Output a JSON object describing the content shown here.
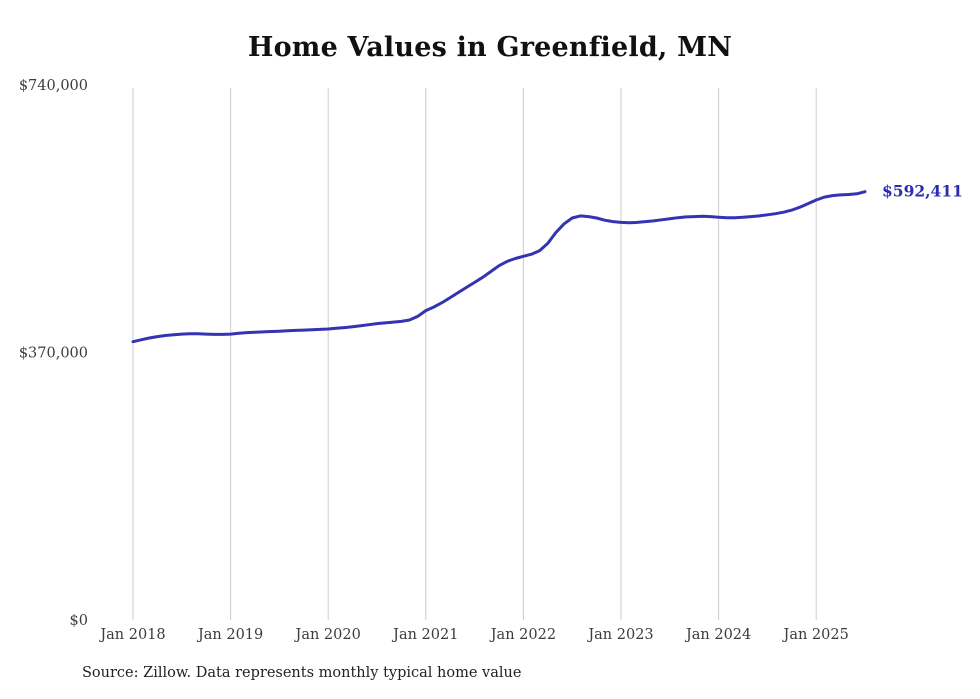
{
  "title": "Home Values in Greenfield, MN",
  "source": "Source: Zillow. Data represents monthly typical home value",
  "colors": {
    "line": "#3333b3",
    "label": "#2b2bb3",
    "grid": "#cccccc",
    "axis_text": "#3c3c3c",
    "title_text": "#111111"
  },
  "chart_data": {
    "type": "line",
    "title": "Home Values in Greenfield, MN",
    "xlabel": "",
    "ylabel": "",
    "ylim": [
      0,
      740000
    ],
    "grid": "vertical-only",
    "frequency": "monthly",
    "x_start": "Jan 2018",
    "x_end": "Jul 2025",
    "x_tick_labels": [
      "Jan 2018",
      "Jan 2019",
      "Jan 2020",
      "Jan 2021",
      "Jan 2022",
      "Jan 2023",
      "Jan 2024",
      "Jan 2025"
    ],
    "y_ticks": [
      {
        "label": "$740,000",
        "value": 740000
      },
      {
        "label": "$370,000",
        "value": 370000
      },
      {
        "label": "$0",
        "value": 0
      }
    ],
    "series": [
      {
        "name": "Typical home value",
        "values": [
          385000,
          387500,
          390000,
          392000,
          393500,
          394500,
          395500,
          396000,
          396000,
          395500,
          395000,
          395000,
          395500,
          396500,
          397500,
          398000,
          398500,
          399000,
          399500,
          400000,
          400500,
          401000,
          401500,
          402000,
          402500,
          403500,
          404500,
          405500,
          407000,
          408500,
          410000,
          411000,
          412000,
          413000,
          415000,
          420000,
          428000,
          433000,
          439000,
          446000,
          453000,
          460000,
          467000,
          474000,
          482000,
          490000,
          496000,
          500000,
          503000,
          506000,
          511000,
          521000,
          536000,
          548000,
          556000,
          559000,
          558000,
          556000,
          553000,
          551000,
          550000,
          549500,
          550000,
          551000,
          552000,
          553500,
          555000,
          556500,
          557500,
          558000,
          558500,
          558000,
          557000,
          556500,
          556500,
          557000,
          558000,
          559000,
          560500,
          562000,
          564000,
          567000,
          571000,
          576000,
          581000,
          585000,
          587000,
          588000,
          588500,
          589500,
          592411
        ]
      }
    ],
    "annotation": {
      "text": "$592,411",
      "value": 592411
    }
  }
}
